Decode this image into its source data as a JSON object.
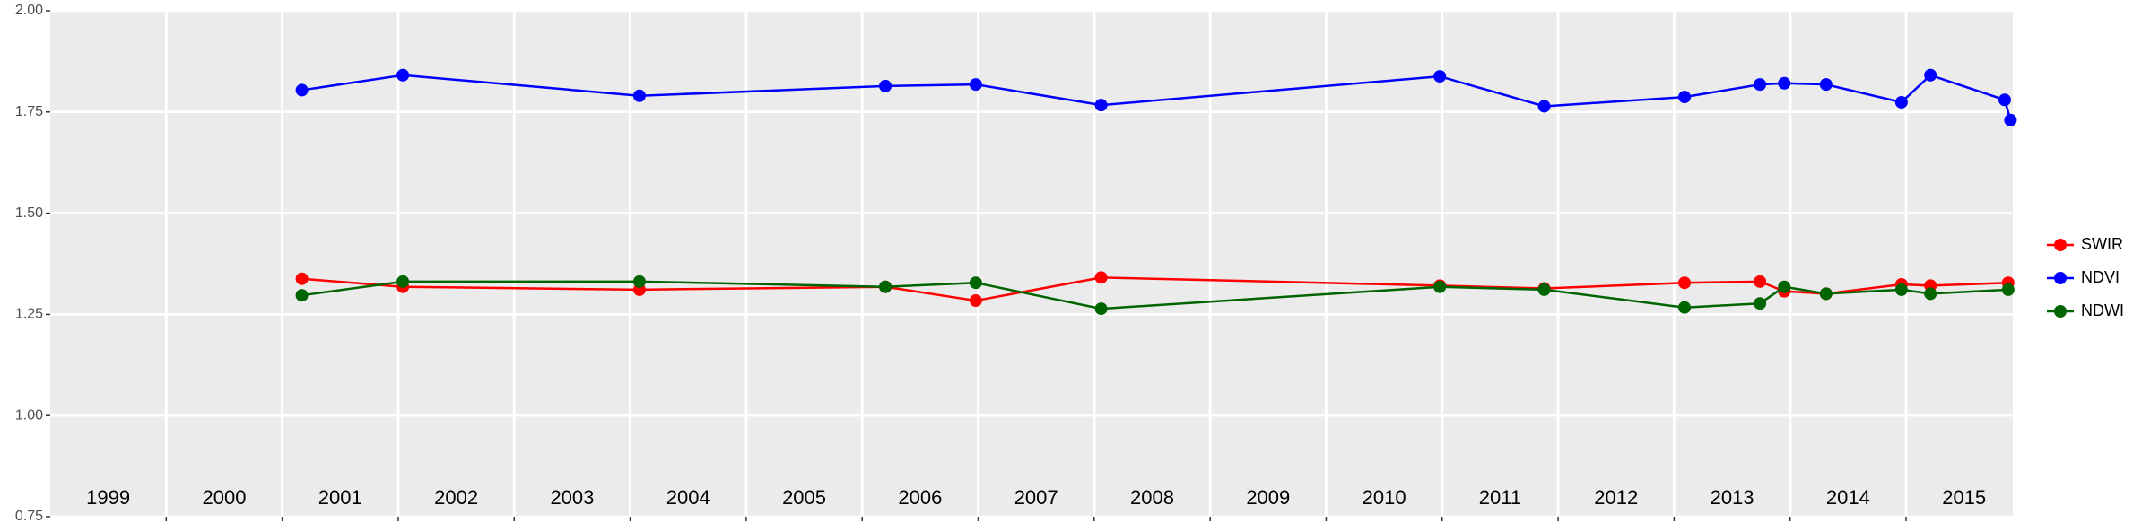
{
  "chart_data": {
    "type": "line",
    "xlim": [
      1999,
      2015.92
    ],
    "ylim": [
      0.75,
      2
    ],
    "yticks": [
      0.75,
      {
        "value": 1,
        "label": "1.00"
      },
      1.25,
      {
        "value": 1.5,
        "label": "1.50"
      },
      1.75,
      {
        "value": 2,
        "label": "2.00"
      }
    ],
    "xticks": [
      {
        "value": 1999.5,
        "label": "1999"
      },
      {
        "value": 2000.5,
        "label": "2000"
      },
      {
        "value": 2001.5,
        "label": "2001"
      },
      {
        "value": 2002.5,
        "label": "2002"
      },
      {
        "value": 2003.5,
        "label": "2003"
      },
      {
        "value": 2004.5,
        "label": "2004"
      },
      {
        "value": 2005.5,
        "label": "2005"
      },
      {
        "value": 2006.5,
        "label": "2006"
      },
      {
        "value": 2007.5,
        "label": "2007"
      },
      {
        "value": 2008.5,
        "label": "2008"
      },
      {
        "value": 2009.5,
        "label": "2009"
      },
      {
        "value": 2010.5,
        "label": "2010"
      },
      {
        "value": 2011.5,
        "label": "2011"
      },
      {
        "value": 2012.5,
        "label": "2012"
      },
      {
        "value": 2013.5,
        "label": "2013"
      },
      {
        "value": 2014.5,
        "label": "2014"
      },
      {
        "value": 2015.5,
        "label": "2015"
      }
    ],
    "xgrid": [
      2000,
      2001,
      2002,
      2003,
      2004,
      2005,
      2006,
      2007,
      2008,
      2009,
      2010,
      2011,
      2012,
      2013,
      2014,
      2015
    ],
    "grid": true,
    "legend": "right",
    "series": [
      {
        "name": "SWIR",
        "color": "#ff0000",
        "x": [
          2001.17,
          2002.04,
          2004.08,
          2006.2,
          2006.98,
          2008.06,
          2010.98,
          2011.88,
          2013.09,
          2013.74,
          2013.95,
          2014.31,
          2014.96,
          2015.21,
          2015.88
        ],
        "values": [
          1.338,
          1.318,
          1.311,
          1.318,
          1.284,
          1.341,
          1.321,
          1.314,
          1.328,
          1.331,
          1.307,
          1.301,
          1.324,
          1.321,
          1.328
        ]
      },
      {
        "name": "NDVI",
        "color": "#0000ff",
        "x": [
          2001.17,
          2002.04,
          2004.08,
          2006.2,
          2006.98,
          2008.06,
          2010.98,
          2011.88,
          2013.09,
          2013.74,
          2013.95,
          2014.31,
          2014.96,
          2015.21,
          2015.85,
          2015.9
        ],
        "values": [
          1.804,
          1.841,
          1.79,
          1.814,
          1.818,
          1.767,
          1.838,
          1.764,
          1.787,
          1.818,
          1.821,
          1.818,
          1.774,
          1.841,
          1.78,
          1.73
        ]
      },
      {
        "name": "NDWI",
        "color": "#006400",
        "x": [
          2001.17,
          2002.04,
          2004.08,
          2006.2,
          2006.98,
          2008.06,
          2010.98,
          2011.88,
          2013.09,
          2013.74,
          2013.95,
          2014.31,
          2014.96,
          2015.21,
          2015.88
        ],
        "values": [
          1.297,
          1.331,
          1.331,
          1.318,
          1.328,
          1.264,
          1.318,
          1.311,
          1.267,
          1.277,
          1.318,
          1.301,
          1.311,
          1.301,
          1.311
        ]
      }
    ]
  }
}
